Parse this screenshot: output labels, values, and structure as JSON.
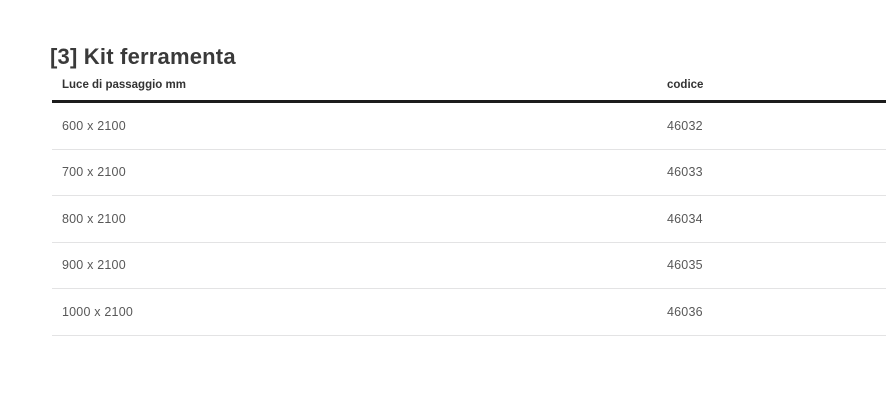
{
  "page": {
    "title": "[3] Kit ferramenta"
  },
  "table": {
    "columns": [
      {
        "key": "luce",
        "label": "Luce di passaggio mm"
      },
      {
        "key": "codice",
        "label": "codice"
      }
    ],
    "rows": [
      {
        "luce": "600 x 2100",
        "codice": "46032"
      },
      {
        "luce": "700 x 2100",
        "codice": "46033"
      },
      {
        "luce": "800 x 2100",
        "codice": "46034"
      },
      {
        "luce": "900 x 2100",
        "codice": "46035"
      },
      {
        "luce": "1000 x 2100",
        "codice": "46036"
      }
    ]
  },
  "colors": {
    "header_rule": "#1c1c1c",
    "row_separator": "#e3e3e4",
    "title_text": "#3a3a3a",
    "header_text": "#333333",
    "row_text": "#585858"
  }
}
